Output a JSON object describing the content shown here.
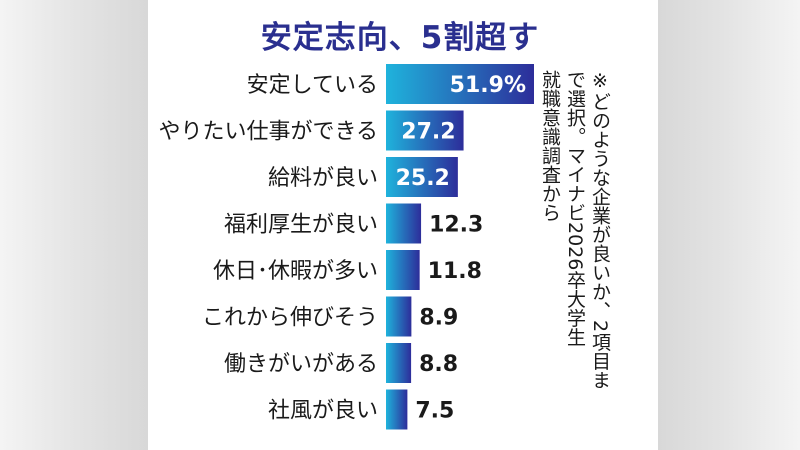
{
  "title": "安定志向、5割超す",
  "note": {
    "line1": "※どのような企業が良いか、2項目ま",
    "line2": "で選択。マイナビ2026卒大学生",
    "line3": "就職意識調査から"
  },
  "colors": {
    "title": "#2a2f8f",
    "bar_start": "#1fb3dc",
    "bar_end": "#2d2d9a"
  },
  "chart_data": {
    "type": "bar",
    "orientation": "horizontal",
    "unit": "%",
    "title": "安定志向、5割超す",
    "categories": [
      "安定している",
      "やりたい仕事ができる",
      "給料が良い",
      "福利厚生が良い",
      "休日･休暇が多い",
      "これから伸びそう",
      "働きがいがある",
      "社風が良い"
    ],
    "values": [
      51.9,
      27.2,
      25.2,
      12.3,
      11.8,
      8.9,
      8.8,
      7.5
    ],
    "value_labels": [
      "51.9%",
      "27.2",
      "25.2",
      "12.3",
      "11.8",
      "8.9",
      "8.8",
      "7.5"
    ],
    "xlim": [
      0,
      55
    ],
    "grid": false,
    "legend": "none"
  }
}
